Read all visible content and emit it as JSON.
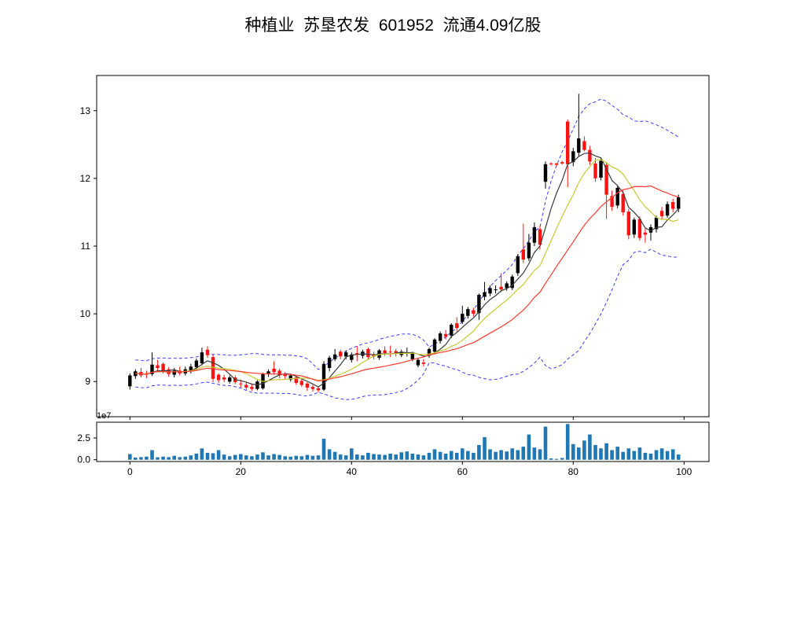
{
  "header": {
    "title": "种植业  苏垦农发  601952  流通4.09亿股"
  },
  "chart_data": {
    "type": "candlestick",
    "title": "种植业  苏垦农发  601952  流通4.09亿股",
    "legend": "none",
    "grid": false,
    "x_axis": {
      "ticks": [
        0,
        20,
        40,
        60,
        80,
        100
      ],
      "lim": [
        -6,
        104.5
      ]
    },
    "price_axis": {
      "ticks": [
        9,
        10,
        11,
        12,
        13
      ],
      "lim": [
        8.48,
        13.52
      ]
    },
    "volume_axis": {
      "tick_labels": [
        "0.0",
        "2.5"
      ],
      "tick_values": [
        0,
        2.5
      ],
      "scale_label": "1e7",
      "max": 4.1
    },
    "colors": {
      "up": "#000000",
      "down": "#ff1212",
      "ma_fast": "#3b3b3b",
      "ma_mid": "#c9c930",
      "ma_slow": "#ff3b30",
      "band": "#3b3bff",
      "volume": "#1f77b4",
      "axis": "#000000"
    },
    "overlays": {
      "ma": [
        {
          "name": "MA5",
          "period": 5,
          "color_key": "ma_fast"
        },
        {
          "name": "MA10",
          "period": 10,
          "color_key": "ma_mid"
        },
        {
          "name": "MA20",
          "period": 20,
          "color_key": "ma_slow"
        }
      ],
      "bollinger": {
        "period": 20,
        "mult": 2,
        "color_key": "band"
      }
    },
    "series": {
      "ohlc": [
        [
          8.93,
          9.12,
          8.88,
          9.09
        ],
        [
          9.08,
          9.18,
          9.04,
          9.15
        ],
        [
          9.14,
          9.2,
          9.06,
          9.09
        ],
        [
          9.12,
          9.16,
          9.05,
          9.1
        ],
        [
          9.11,
          9.43,
          9.08,
          9.25
        ],
        [
          9.24,
          9.32,
          9.14,
          9.2
        ],
        [
          9.26,
          9.28,
          9.12,
          9.15
        ],
        [
          9.18,
          9.21,
          9.07,
          9.11
        ],
        [
          9.1,
          9.2,
          9.06,
          9.16
        ],
        [
          9.16,
          9.22,
          9.09,
          9.12
        ],
        [
          9.12,
          9.22,
          9.09,
          9.18
        ],
        [
          9.15,
          9.26,
          9.12,
          9.22
        ],
        [
          9.21,
          9.34,
          9.17,
          9.31
        ],
        [
          9.27,
          9.5,
          9.24,
          9.43
        ],
        [
          9.47,
          9.52,
          9.35,
          9.39
        ],
        [
          9.36,
          9.4,
          8.99,
          9.04
        ],
        [
          9.1,
          9.12,
          8.98,
          9.02
        ],
        [
          9.06,
          9.1,
          8.99,
          9.03
        ],
        [
          9.0,
          9.09,
          8.97,
          9.06
        ],
        [
          9.06,
          9.09,
          8.96,
          8.99
        ],
        [
          8.97,
          9.03,
          8.91,
          8.96
        ],
        [
          8.95,
          8.99,
          8.88,
          8.91
        ],
        [
          8.92,
          8.96,
          8.86,
          8.89
        ],
        [
          8.89,
          9.02,
          8.87,
          9.0
        ],
        [
          8.9,
          9.13,
          8.88,
          9.11
        ],
        [
          9.12,
          9.18,
          9.07,
          9.15
        ],
        [
          9.19,
          9.3,
          9.1,
          9.14
        ],
        [
          9.16,
          9.19,
          9.05,
          9.09
        ],
        [
          9.11,
          9.14,
          9.04,
          9.08
        ],
        [
          9.03,
          9.1,
          9.0,
          9.09
        ],
        [
          9.06,
          9.08,
          8.95,
          8.98
        ],
        [
          9.01,
          9.03,
          8.92,
          8.95
        ],
        [
          8.97,
          8.99,
          8.86,
          8.91
        ],
        [
          8.92,
          8.95,
          8.85,
          8.89
        ],
        [
          8.9,
          8.93,
          8.84,
          8.87
        ],
        [
          8.88,
          9.3,
          8.86,
          9.26
        ],
        [
          9.2,
          9.38,
          9.15,
          9.35
        ],
        [
          9.33,
          9.48,
          9.3,
          9.4
        ],
        [
          9.44,
          9.47,
          9.33,
          9.37
        ],
        [
          9.37,
          9.46,
          9.33,
          9.43
        ],
        [
          9.32,
          9.43,
          9.28,
          9.4
        ],
        [
          9.42,
          9.52,
          9.3,
          9.4
        ],
        [
          9.38,
          9.47,
          9.34,
          9.44
        ],
        [
          9.48,
          9.5,
          9.32,
          9.36
        ],
        [
          9.4,
          9.44,
          9.33,
          9.37
        ],
        [
          9.35,
          9.48,
          9.32,
          9.46
        ],
        [
          9.46,
          9.52,
          9.38,
          9.42
        ],
        [
          9.44,
          9.53,
          9.36,
          9.43
        ],
        [
          9.45,
          9.48,
          9.37,
          9.41
        ],
        [
          9.39,
          9.47,
          9.36,
          9.44
        ],
        [
          9.41,
          9.5,
          9.37,
          9.43
        ],
        [
          9.33,
          9.44,
          9.3,
          9.42
        ],
        [
          9.24,
          9.35,
          9.21,
          9.32
        ],
        [
          9.28,
          9.33,
          9.22,
          9.26
        ],
        [
          9.39,
          9.5,
          9.35,
          9.48
        ],
        [
          9.44,
          9.64,
          9.4,
          9.62
        ],
        [
          9.6,
          9.74,
          9.56,
          9.71
        ],
        [
          9.7,
          9.76,
          9.62,
          9.66
        ],
        [
          9.68,
          9.86,
          9.64,
          9.84
        ],
        [
          9.86,
          9.95,
          9.74,
          9.79
        ],
        [
          9.88,
          10.12,
          9.85,
          10.0
        ],
        [
          9.97,
          10.1,
          9.93,
          10.07
        ],
        [
          10.05,
          10.09,
          9.96,
          10.0
        ],
        [
          10.01,
          10.3,
          9.91,
          10.28
        ],
        [
          10.25,
          10.47,
          10.2,
          10.32
        ],
        [
          10.3,
          10.42,
          10.26,
          10.38
        ],
        [
          10.36,
          10.42,
          10.3,
          10.36
        ],
        [
          10.4,
          10.6,
          10.32,
          10.36
        ],
        [
          10.38,
          10.48,
          10.34,
          10.45
        ],
        [
          10.38,
          10.58,
          10.35,
          10.55
        ],
        [
          10.6,
          10.88,
          10.56,
          10.85
        ],
        [
          10.95,
          11.33,
          10.75,
          10.8
        ],
        [
          10.82,
          11.18,
          10.78,
          11.05
        ],
        [
          11.05,
          11.35,
          11.0,
          11.28
        ],
        [
          11.25,
          11.3,
          10.95,
          11.02
        ],
        [
          11.95,
          12.25,
          11.85,
          12.21
        ],
        [
          12.22,
          12.24,
          12.19,
          12.21
        ],
        [
          12.22,
          12.23,
          12.18,
          12.2
        ],
        [
          12.24,
          12.26,
          12.2,
          12.22
        ],
        [
          12.84,
          12.87,
          11.87,
          12.21
        ],
        [
          12.24,
          12.45,
          12.18,
          12.4
        ],
        [
          12.38,
          13.25,
          12.33,
          12.59
        ],
        [
          12.55,
          12.62,
          12.4,
          12.42
        ],
        [
          12.42,
          12.48,
          12.2,
          12.25
        ],
        [
          12.22,
          12.3,
          11.95,
          12.0
        ],
        [
          12.01,
          12.3,
          11.97,
          12.26
        ],
        [
          12.2,
          12.24,
          11.4,
          11.76
        ],
        [
          11.74,
          11.82,
          11.52,
          11.58
        ],
        [
          11.6,
          11.9,
          11.56,
          11.86
        ],
        [
          11.77,
          11.82,
          11.45,
          11.5
        ],
        [
          11.51,
          11.55,
          11.1,
          11.16
        ],
        [
          11.17,
          11.42,
          11.12,
          11.39
        ],
        [
          11.4,
          11.44,
          11.08,
          11.12
        ],
        [
          11.2,
          11.26,
          11.05,
          11.17
        ],
        [
          11.2,
          11.32,
          11.08,
          11.28
        ],
        [
          11.25,
          11.45,
          11.2,
          11.42
        ],
        [
          11.52,
          11.58,
          11.4,
          11.44
        ],
        [
          11.45,
          11.66,
          11.42,
          11.62
        ],
        [
          11.65,
          11.7,
          11.5,
          11.55
        ],
        [
          11.55,
          11.76,
          11.5,
          11.72
        ]
      ],
      "volume_1e7": [
        0.65,
        0.25,
        0.3,
        0.35,
        1.1,
        0.28,
        0.35,
        0.3,
        0.45,
        0.3,
        0.35,
        0.5,
        0.7,
        1.3,
        0.8,
        0.75,
        1.1,
        0.6,
        0.4,
        0.55,
        0.65,
        0.5,
        0.4,
        0.6,
        0.85,
        0.5,
        0.65,
        0.55,
        0.4,
        0.35,
        0.45,
        0.4,
        0.55,
        0.45,
        0.5,
        2.4,
        1.2,
        0.9,
        0.6,
        0.5,
        1.3,
        0.6,
        0.5,
        0.8,
        0.65,
        0.6,
        0.55,
        0.7,
        0.6,
        0.85,
        0.95,
        0.7,
        0.6,
        0.5,
        0.8,
        1.2,
        0.9,
        0.7,
        1.0,
        0.8,
        1.3,
        1.0,
        0.8,
        1.7,
        2.6,
        1.2,
        0.9,
        1.1,
        0.95,
        1.3,
        1.1,
        1.5,
        2.9,
        1.4,
        1.2,
        3.8,
        0.15,
        0.1,
        0.2,
        4.1,
        1.8,
        1.4,
        2.2,
        2.9,
        1.7,
        1.3,
        1.9,
        1.1,
        1.5,
        0.9,
        1.3,
        1.0,
        1.4,
        0.8,
        0.7,
        1.1,
        1.3,
        1.0,
        1.2,
        0.6
      ]
    }
  }
}
